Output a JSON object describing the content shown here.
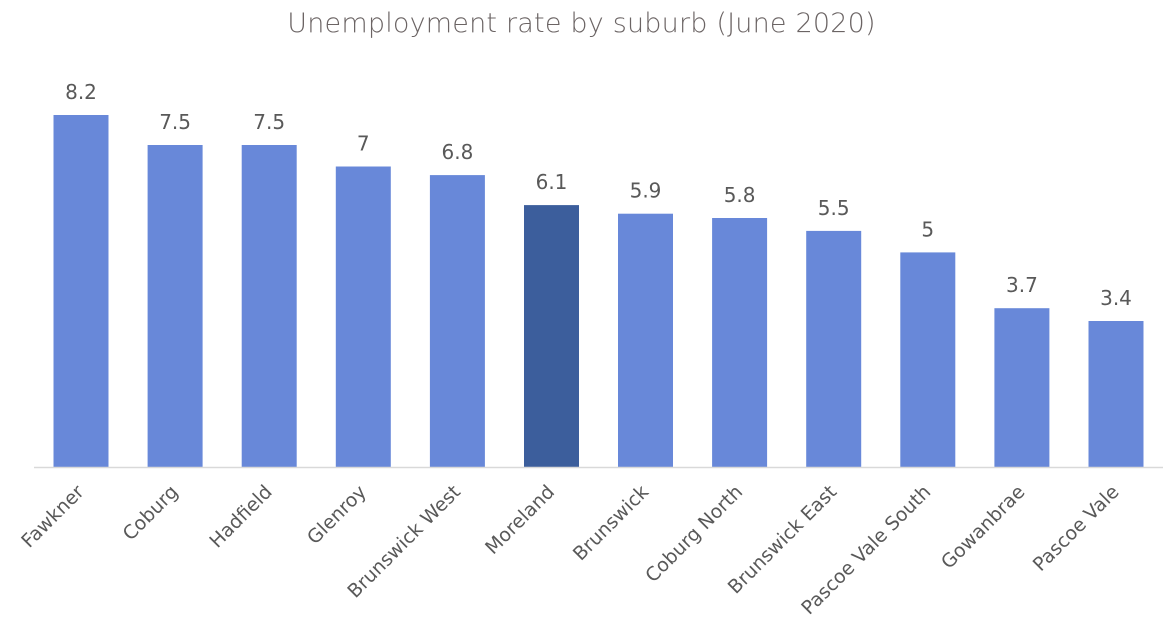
{
  "chart_data": {
    "type": "bar",
    "title": "Unemployment rate by suburb (June 2020)",
    "xlabel": "",
    "ylabel": "",
    "categories": [
      "Fawkner",
      "Coburg",
      "Hadfield",
      "Glenroy",
      "Brunswick West",
      "Moreland",
      "Brunswick",
      "Coburg North",
      "Brunswick East",
      "Pascoe Vale South",
      "Gowanbrae",
      "Pascoe Vale"
    ],
    "values": [
      8.2,
      7.5,
      7.5,
      7,
      6.8,
      6.1,
      5.9,
      5.8,
      5.5,
      5,
      3.7,
      3.4
    ],
    "value_labels": [
      "8.2",
      "7.5",
      "7.5",
      "7",
      "6.8",
      "6.1",
      "5.9",
      "5.8",
      "5.5",
      "5",
      "3.7",
      "3.4"
    ],
    "ylim": [
      0,
      8.2
    ],
    "grid": false,
    "legend": "none",
    "highlight_category": "Moreland",
    "colors": {
      "bar": "#6888d9",
      "highlight": "#3c5e9c",
      "axis": "#d9d9d9",
      "text": "#595959",
      "title": "#6b6464"
    }
  }
}
